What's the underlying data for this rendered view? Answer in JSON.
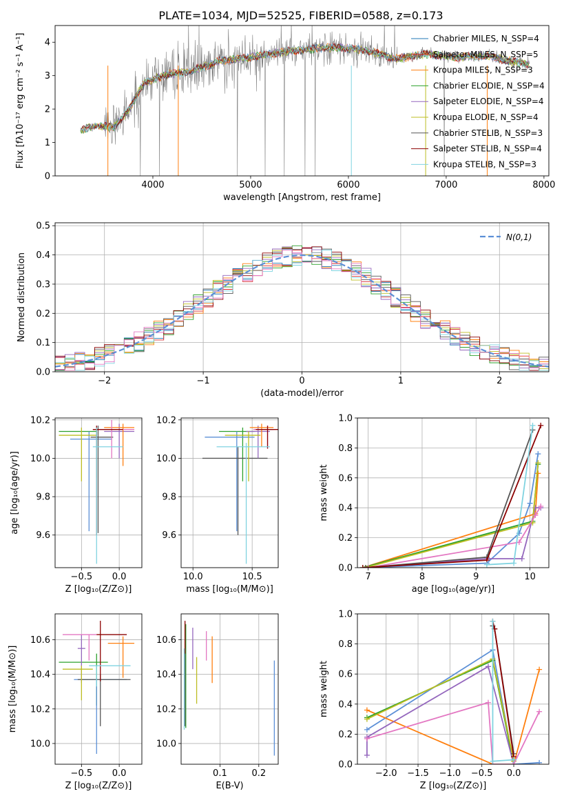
{
  "figure": {
    "title": "PLATE=1034, MJD=52525, FIBERID=0588, z=0.173"
  },
  "chart_data": [
    {
      "id": "spectrum",
      "type": "line",
      "xlabel": "wavelength [Angstrom, rest frame]",
      "ylabel": "Flux [fλ10⁻¹⁷ erg cm⁻² s⁻¹ A⁻¹]",
      "xlim": [
        3000,
        8050
      ],
      "ylim": [
        0,
        4.5
      ],
      "xticks": [
        4000,
        5000,
        6000,
        7000,
        8000
      ],
      "yticks": [
        0,
        1,
        2,
        3,
        4
      ],
      "grid": false,
      "legend": "upper right",
      "data_color": "#808080",
      "continuum": {
        "x": [
          3260,
          3400,
          3600,
          3750,
          3900,
          4100,
          4400,
          4700,
          5000,
          5300,
          5600,
          5900,
          6200,
          6500,
          6800,
          7100,
          7400,
          7700,
          7850
        ],
        "y": [
          1.35,
          1.5,
          1.45,
          1.95,
          2.75,
          3.0,
          3.15,
          3.45,
          3.55,
          3.7,
          3.8,
          3.85,
          3.75,
          3.5,
          3.65,
          3.55,
          3.6,
          3.4,
          3.35
        ]
      },
      "series": [
        {
          "name": "Chabrier MILES, N_SSP=4",
          "color": "#1f77b4"
        },
        {
          "name": "Salpeter MILES, N_SSP=5",
          "color": "#d62728"
        },
        {
          "name": "Kroupa MILES, N_SSP=3",
          "color": "#ff7f0e"
        },
        {
          "name": "Chabrier ELODIE, N_SSP=4",
          "color": "#2ca02c"
        },
        {
          "name": "Salpeter ELODIE, N_SSP=4",
          "color": "#9467bd"
        },
        {
          "name": "Kroupa ELODIE, N_SSP=4",
          "color": "#bcbd22"
        },
        {
          "name": "Chabrier STELIB, N_SSP=3",
          "color": "#555555"
        },
        {
          "name": "Salpeter STELIB, N_SSP=4",
          "color": "#8b0000"
        },
        {
          "name": "Kroupa STELIB, N_SSP=3",
          "color": "#7fd3e0"
        }
      ]
    },
    {
      "id": "residuals",
      "type": "line",
      "xlabel": "(data-model)/error",
      "ylabel": "Normed distribution",
      "xlim": [
        -2.5,
        2.5
      ],
      "ylim": [
        0,
        0.51
      ],
      "xticks": [
        -2,
        -1,
        0,
        1,
        2
      ],
      "yticks": [
        0.0,
        0.1,
        0.2,
        0.3,
        0.4,
        0.5
      ],
      "grid": true,
      "legend": "upper right",
      "gaussian": {
        "name": "N(0,1)",
        "color": "#5b8fd6"
      },
      "hist_colors": [
        "#1f77b4",
        "#d62728",
        "#ff7f0e",
        "#2ca02c",
        "#9467bd",
        "#bcbd22",
        "#555555",
        "#8b0000",
        "#7fd3e0",
        "#e377c2"
      ]
    },
    {
      "id": "age_vs_Z",
      "type": "scatter",
      "xlabel": "Z [log₁₀(Z/Z⊙)]",
      "ylabel": "age  [log₁₀(age/yr)]",
      "xlim": [
        -0.85,
        0.3
      ],
      "ylim": [
        9.43,
        10.21
      ],
      "xticks": [
        -0.5,
        0.0
      ],
      "yticks": [
        9.6,
        9.8,
        10.0,
        10.2
      ],
      "grid": true,
      "points": [
        {
          "x": -0.3,
          "y": 10.14,
          "xerr": [
            0.5,
            0.0
          ],
          "yerr": [
            0.24,
            0.0
          ],
          "color": "#2ca02c"
        },
        {
          "x": -0.4,
          "y": 10.1,
          "xerr": [
            0.25,
            0.3
          ],
          "yerr": [
            0.48,
            0.04
          ],
          "color": "#5b8fd6"
        },
        {
          "x": -0.28,
          "y": 10.11,
          "xerr": [
            0.1,
            0.2
          ],
          "yerr": [
            0.5,
            0.06
          ],
          "color": "#555555"
        },
        {
          "x": 0.0,
          "y": 10.14,
          "xerr": [
            0.2,
            0.2
          ],
          "yerr": [
            0.14,
            0.04
          ],
          "color": "#9467bd"
        },
        {
          "x": 0.05,
          "y": 10.16,
          "xerr": [
            0.25,
            0.15
          ],
          "yerr": [
            0.2,
            0.02
          ],
          "color": "#ff7f0e"
        },
        {
          "x": -0.1,
          "y": 10.15,
          "xerr": [
            0.2,
            0.3
          ],
          "yerr": [
            0.15,
            0.05
          ],
          "color": "#e377c2"
        },
        {
          "x": -0.5,
          "y": 10.12,
          "xerr": [
            0.3,
            0.2
          ],
          "yerr": [
            0.24,
            0.04
          ],
          "color": "#bcbd22"
        },
        {
          "x": -0.3,
          "y": 10.15,
          "xerr": [
            0.05,
            0.35
          ],
          "yerr": [
            0.55,
            0.02
          ],
          "color": "#8b0000"
        },
        {
          "x": -0.3,
          "y": 10.06,
          "xerr": [
            0.05,
            0.35
          ],
          "yerr": [
            0.61,
            0.1
          ],
          "color": "#7fd3e0"
        }
      ]
    },
    {
      "id": "age_vs_mass",
      "type": "scatter",
      "xlabel": "mass [log₁₀(M/M⊙)]",
      "ylabel": "",
      "xlim": [
        9.9,
        10.72
      ],
      "ylim": [
        9.43,
        10.21
      ],
      "xticks": [
        10.0,
        10.5
      ],
      "yticks": [
        9.6,
        9.8,
        10.0,
        10.2
      ],
      "grid": true,
      "points": [
        {
          "x": 10.42,
          "y": 10.14,
          "xerr": [
            0.2,
            0.1
          ],
          "yerr": [
            0.26,
            0.02
          ],
          "color": "#2ca02c"
        },
        {
          "x": 10.37,
          "y": 10.11,
          "xerr": [
            0.27,
            0.15
          ],
          "yerr": [
            0.49,
            0.03
          ],
          "color": "#5b8fd6"
        },
        {
          "x": 10.38,
          "y": 10.0,
          "xerr": [
            0.3,
            0.25
          ],
          "yerr": [
            0.4,
            0.06
          ],
          "color": "#555555"
        },
        {
          "x": 10.55,
          "y": 10.14,
          "xerr": [
            0.1,
            0.1
          ],
          "yerr": [
            0.14,
            0.03
          ],
          "color": "#9467bd"
        },
        {
          "x": 10.58,
          "y": 10.16,
          "xerr": [
            0.1,
            0.1
          ],
          "yerr": [
            0.1,
            0.02
          ],
          "color": "#ff7f0e"
        },
        {
          "x": 10.63,
          "y": 10.15,
          "xerr": [
            0.12,
            0.05
          ],
          "yerr": [
            0.1,
            0.02
          ],
          "color": "#e377c2"
        },
        {
          "x": 10.47,
          "y": 10.12,
          "xerr": [
            0.2,
            0.1
          ],
          "yerr": [
            0.24,
            0.02
          ],
          "color": "#bcbd22"
        },
        {
          "x": 10.63,
          "y": 10.15,
          "xerr": [
            0.1,
            0.1
          ],
          "yerr": [
            0.1,
            0.02
          ],
          "color": "#8b0000"
        },
        {
          "x": 10.45,
          "y": 10.06,
          "xerr": [
            0.25,
            0.2
          ],
          "yerr": [
            0.61,
            0.02
          ],
          "color": "#7fd3e0"
        }
      ]
    },
    {
      "id": "massweight_vs_age",
      "type": "line",
      "xlabel": "age  [log₁₀(age/yr)]",
      "ylabel": "mass weight",
      "xlim": [
        6.8,
        10.35
      ],
      "ylim": [
        0,
        1.0
      ],
      "xticks": [
        7,
        8,
        9,
        10
      ],
      "yticks": [
        0.0,
        0.2,
        0.4,
        0.6,
        0.8,
        1.0
      ],
      "grid": true,
      "series": [
        {
          "color": "#5b8fd6",
          "x": [
            6.9,
            9.2,
            9.8,
            10.0,
            10.15
          ],
          "y": [
            0.0,
            0.03,
            0.23,
            0.43,
            0.76
          ]
        },
        {
          "color": "#ff7f0e",
          "x": [
            6.9,
            10.1,
            10.15
          ],
          "y": [
            0.0,
            0.36,
            0.63
          ]
        },
        {
          "color": "#2ca02c",
          "x": [
            6.9,
            10.05,
            10.15
          ],
          "y": [
            0.0,
            0.31,
            0.69
          ]
        },
        {
          "color": "#9467bd",
          "x": [
            6.95,
            9.2,
            9.85,
            10.1,
            10.2
          ],
          "y": [
            0.0,
            0.06,
            0.06,
            0.4,
            0.4
          ]
        },
        {
          "color": "#bcbd22",
          "x": [
            6.95,
            10.05,
            10.15
          ],
          "y": [
            0.0,
            0.3,
            0.7
          ]
        },
        {
          "color": "#e377c2",
          "x": [
            7.0,
            9.8,
            10.1,
            10.2
          ],
          "y": [
            0.0,
            0.17,
            0.35,
            0.41
          ]
        },
        {
          "color": "#555555",
          "x": [
            6.95,
            9.2,
            10.05
          ],
          "y": [
            0.0,
            0.07,
            0.92
          ]
        },
        {
          "color": "#8b0000",
          "x": [
            6.9,
            9.2,
            10.2
          ],
          "y": [
            0.0,
            0.05,
            0.95
          ]
        },
        {
          "color": "#7fd3e0",
          "x": [
            9.2,
            9.7,
            10.05
          ],
          "y": [
            0.02,
            0.03,
            0.95
          ]
        }
      ]
    },
    {
      "id": "mass_vs_Z",
      "type": "scatter",
      "xlabel": "Z [log₁₀(Z/Z⊙)]",
      "ylabel": "mass [log₁₀(M/M⊙)]",
      "xlim": [
        -0.85,
        0.3
      ],
      "ylim": [
        9.88,
        10.75
      ],
      "xticks": [
        -0.5,
        0.0
      ],
      "yticks": [
        10.0,
        10.2,
        10.4,
        10.6
      ],
      "grid": true,
      "points": [
        {
          "x": -0.3,
          "y": 10.47,
          "xerr": [
            0.5,
            0.15
          ],
          "yerr": [
            0.25,
            0.05
          ],
          "color": "#2ca02c"
        },
        {
          "x": -0.3,
          "y": 10.37,
          "xerr": [
            0.3,
            0.4
          ],
          "yerr": [
            0.43,
            0.0
          ],
          "color": "#5b8fd6"
        },
        {
          "x": -0.25,
          "y": 10.37,
          "xerr": [
            0.3,
            0.4
          ],
          "yerr": [
            0.27,
            0.03
          ],
          "color": "#555555"
        },
        {
          "x": -0.5,
          "y": 10.55,
          "xerr": [
            0.05,
            0.05
          ],
          "yerr": [
            0.2,
            0.08
          ],
          "color": "#9467bd"
        },
        {
          "x": 0.05,
          "y": 10.58,
          "xerr": [
            0.2,
            0.15
          ],
          "yerr": [
            0.2,
            0.04
          ],
          "color": "#ff7f0e"
        },
        {
          "x": -0.4,
          "y": 10.63,
          "xerr": [
            0.35,
            0.1
          ],
          "yerr": [
            0.15,
            0.0
          ],
          "color": "#e377c2"
        },
        {
          "x": -0.5,
          "y": 10.43,
          "xerr": [
            0.25,
            0.15
          ],
          "yerr": [
            0.18,
            0.02
          ],
          "color": "#bcbd22"
        },
        {
          "x": -0.25,
          "y": 10.63,
          "xerr": [
            0.05,
            0.35
          ],
          "yerr": [
            0.27,
            0.08
          ],
          "color": "#8b0000"
        },
        {
          "x": -0.3,
          "y": 10.45,
          "xerr": [
            0.1,
            0.45
          ],
          "yerr": [
            0.12,
            0.0
          ],
          "color": "#7fd3e0"
        }
      ]
    },
    {
      "id": "mass_vs_EBV",
      "type": "scatter",
      "xlabel": "E(B-V)",
      "ylabel": "",
      "xlim": [
        0.0,
        0.25
      ],
      "ylim": [
        9.88,
        10.75
      ],
      "xticks": [
        0.1,
        0.2
      ],
      "yticks": [
        10.0,
        10.2,
        10.4,
        10.6
      ],
      "grid": true,
      "points": [
        {
          "x": 0.012,
          "y": 10.47,
          "xerr": [
            0,
            0
          ],
          "yerr": [
            0.38,
            0.22
          ],
          "color": "#2ca02c"
        },
        {
          "x": 0.24,
          "y": 10.2,
          "xerr": [
            0,
            0
          ],
          "yerr": [
            0.27,
            0.28
          ],
          "color": "#5b8fd6"
        },
        {
          "x": 0.01,
          "y": 10.4,
          "xerr": [
            0,
            0
          ],
          "yerr": [
            0.3,
            0.3
          ],
          "color": "#555555"
        },
        {
          "x": 0.03,
          "y": 10.55,
          "xerr": [
            0,
            0
          ],
          "yerr": [
            0.12,
            0.12
          ],
          "color": "#9467bd"
        },
        {
          "x": 0.08,
          "y": 10.48,
          "xerr": [
            0,
            0
          ],
          "yerr": [
            0.13,
            0.14
          ],
          "color": "#ff7f0e"
        },
        {
          "x": 0.065,
          "y": 10.58,
          "xerr": [
            0,
            0
          ],
          "yerr": [
            0.1,
            0.07
          ],
          "color": "#e377c2"
        },
        {
          "x": 0.04,
          "y": 10.38,
          "xerr": [
            0,
            0
          ],
          "yerr": [
            0.15,
            0.12
          ],
          "color": "#bcbd22"
        },
        {
          "x": 0.01,
          "y": 10.62,
          "xerr": [
            0,
            0
          ],
          "yerr": [
            0.1,
            0.09
          ],
          "color": "#8b0000"
        },
        {
          "x": 0.008,
          "y": 10.3,
          "xerr": [
            0,
            0
          ],
          "yerr": [
            0.22,
            0.25
          ],
          "color": "#7fd3e0"
        }
      ]
    },
    {
      "id": "massweight_vs_Z",
      "type": "line",
      "xlabel": "Z [log₁₀(Z/Z⊙)]",
      "ylabel": "mass weight",
      "xlim": [
        -2.45,
        0.55
      ],
      "ylim": [
        0,
        1.0
      ],
      "xticks": [
        -2.0,
        -1.5,
        -1.0,
        -0.5,
        0.0
      ],
      "yticks": [
        0.0,
        0.2,
        0.4,
        0.6,
        0.8,
        1.0
      ],
      "grid": true,
      "series": [
        {
          "color": "#5b8fd6",
          "x": [
            -2.3,
            -0.33,
            0.0,
            0.4
          ],
          "y": [
            0.23,
            0.76,
            0.0,
            0.01
          ]
        },
        {
          "color": "#ff7f0e",
          "x": [
            -2.3,
            -0.33,
            0.0,
            0.4
          ],
          "y": [
            0.36,
            0.0,
            0.0,
            0.63
          ]
        },
        {
          "color": "#2ca02c",
          "x": [
            -2.3,
            -0.33,
            0.0
          ],
          "y": [
            0.31,
            0.69,
            0.0
          ]
        },
        {
          "color": "#9467bd",
          "x": [
            -2.3,
            -2.3,
            -0.4,
            0.0
          ],
          "y": [
            0.06,
            0.18,
            0.65,
            0.0
          ]
        },
        {
          "color": "#bcbd22",
          "x": [
            -2.3,
            -0.33,
            0.0
          ],
          "y": [
            0.3,
            0.7,
            0.02
          ]
        },
        {
          "color": "#e377c2",
          "x": [
            -2.3,
            -0.4,
            -0.33,
            0.0,
            0.4
          ],
          "y": [
            0.17,
            0.41,
            0.0,
            0.0,
            0.35
          ]
        },
        {
          "color": "#555555",
          "x": [
            -0.33,
            -0.3,
            0.0
          ],
          "y": [
            0.92,
            0.9,
            0.07
          ]
        },
        {
          "color": "#8b0000",
          "x": [
            -0.33,
            -0.3,
            0.0
          ],
          "y": [
            0.95,
            0.9,
            0.05
          ]
        },
        {
          "color": "#7fd3e0",
          "x": [
            -0.33,
            -0.33,
            0.0
          ],
          "y": [
            0.95,
            0.02,
            0.03
          ]
        }
      ]
    }
  ]
}
